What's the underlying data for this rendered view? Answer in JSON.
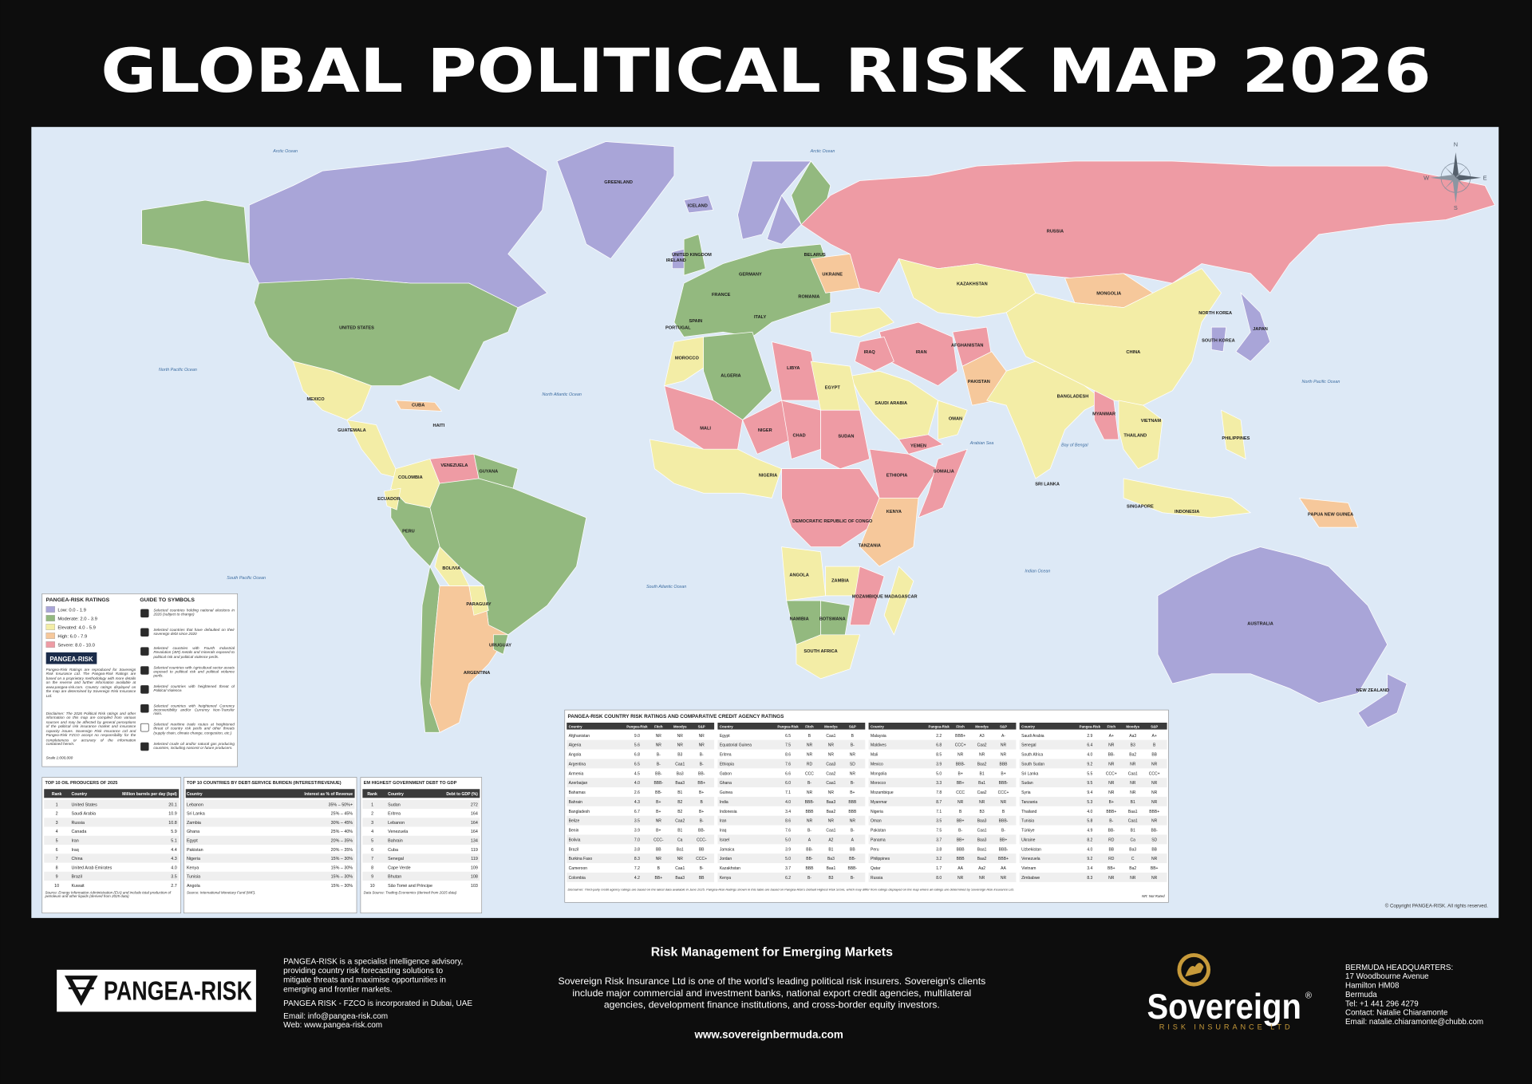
{
  "title": "GLOBAL POLITICAL RISK MAP 2026",
  "map": {
    "labels": [
      "UNITED STATES",
      "MEXICO",
      "GREENLAND",
      "ICELAND",
      "CUBA",
      "HAITI",
      "GUATEMALA",
      "COLOMBIA",
      "VENEZUELA",
      "GUYANA",
      "ECUADOR",
      "PERU",
      "BOLIVIA",
      "PARAGUAY",
      "URUGUAY",
      "ARGENTINA",
      "UNITED KINGDOM",
      "IRELAND",
      "SPAIN",
      "PORTUGAL",
      "FRANCE",
      "GERMANY",
      "ITALY",
      "UKRAINE",
      "BELARUS",
      "ROMANIA",
      "RUSSIA",
      "KAZAKHSTAN",
      "MONGOLIA",
      "CHINA",
      "JAPAN",
      "NORTH KOREA",
      "SOUTH KOREA",
      "AFGHANISTAN",
      "PAKISTAN",
      "IRAN",
      "IRAQ",
      "SAUDI ARABIA",
      "YEMEN",
      "OMAN",
      "EGYPT",
      "LIBYA",
      "ALGERIA",
      "MOROCCO",
      "MALI",
      "NIGER",
      "CHAD",
      "SUDAN",
      "ETHIOPIA",
      "SOMALIA",
      "NIGERIA",
      "DEMOCRATIC REPUBLIC OF CONGO",
      "KENYA",
      "TANZANIA",
      "ANGOLA",
      "ZAMBIA",
      "MOZAMBIQUE",
      "NAMIBIA",
      "BOTSWANA",
      "SOUTH AFRICA",
      "MADAGASCAR",
      "BANGLADESH",
      "MYANMAR",
      "THAILAND",
      "VIETNAM",
      "PHILIPPINES",
      "SRI LANKA",
      "SINGAPORE",
      "INDONESIA",
      "PAPUA NEW GUINEA",
      "AUSTRALIA",
      "NEW ZEALAND"
    ],
    "ocean_labels": [
      "Arctic Ocean",
      "Arctic Ocean",
      "North Pacific Ocean",
      "North Atlantic Ocean",
      "South Pacific Ocean",
      "South Atlantic Ocean",
      "Indian Ocean",
      "Bay of Bengal",
      "Arabian Sea",
      "North Pacific Ocean"
    ],
    "compass": [
      "N",
      "E",
      "S",
      "W"
    ],
    "copyright": "© Copyright PANGEA-RISK. All rights reserved."
  },
  "legend": {
    "title": "PANGEA-RISK RATINGS",
    "items": [
      {
        "label": "Low: 0.0 - 1.9",
        "color": "#a9a5d8"
      },
      {
        "label": "Moderate: 2.0 - 3.9",
        "color": "#93b97f"
      },
      {
        "label": "Elevated: 4.0 - 5.9",
        "color": "#f3eda6"
      },
      {
        "label": "High: 6.0 - 7.9",
        "color": "#f6c89b"
      },
      {
        "label": "Severe: 8.0 - 10.0",
        "color": "#ee9ba4"
      }
    ],
    "brand": "PANGEA-RISK",
    "note": "Pangea-Risk Ratings are reproduced for Sovereign Risk Insurance Ltd. The Pangea-Risk Ratings are based on a proprietary methodology with more details on the reverse and further information available at www.pangea-risk.com. Country ratings displayed on the map are determined by Sovereign Risk Insurance Ltd.",
    "disclaimer": "Disclaimer: The 2026 Political Risk ratings and other information on this map are compiled from various sources and may be affected by general perceptions of the political risk insurance market and insurance capacity issues. Sovereign Risk Insurance Ltd and Pangea-Risk FZCO accept no responsibility for the completeness or accuracy of the information contained herein.",
    "scale": "Scale 1:000,000"
  },
  "symbols": {
    "title": "GUIDE TO SYMBOLS",
    "items": [
      "Selected countries holding national elections in 2026 (subject to change)",
      "Selected countries that have defaulted on their sovereign debt since 2020",
      "Selected countries with Fourth Industrial Revolution (4IR) metals and minerals exposed to political risk and political violence perils.",
      "Selected countries with Agricultural sector assets exposed to political risk and political violence perils.",
      "Selected countries with heightened threat of Political Violence.",
      "Selected countries with heightened Currency Inconvertibility and/or Currency Non-Transfer risks.",
      "Selected maritime trade routes at heightened threat of country risk perils and other threats (supply chain, climate change, congestion, etc.)",
      "Selected crude oil and/or natural gas producing countries, including nascent or future producers."
    ]
  },
  "oil": {
    "title": "TOP 10 OIL PRODUCERS OF 2025",
    "columns": [
      "Rank",
      "Country",
      "Million barrels per day (bpd)"
    ],
    "rows": [
      [
        "1",
        "United States",
        "20.1"
      ],
      [
        "2",
        "Saudi Arabia",
        "10.9"
      ],
      [
        "3",
        "Russia",
        "10.8"
      ],
      [
        "4",
        "Canada",
        "5.9"
      ],
      [
        "5",
        "Iran",
        "5.1"
      ],
      [
        "6",
        "Iraq",
        "4.4"
      ],
      [
        "7",
        "China",
        "4.3"
      ],
      [
        "8",
        "United Arab Emirates",
        "4.0"
      ],
      [
        "9",
        "Brazil",
        "3.5"
      ],
      [
        "10",
        "Kuwait",
        "2.7"
      ]
    ],
    "source": "Source: Energy Information Administration (EIA) and include total production of petroleum and other liquids (derived from 2025 data)"
  },
  "debt_service": {
    "title": "TOP 10 COUNTRIES BY DEBT-SERVICE BURDEN (INTEREST/REVENUE)",
    "columns": [
      "Country",
      "Interest as % of Revenue"
    ],
    "rows": [
      [
        "Lebanon",
        "35% – 50%+"
      ],
      [
        "Sri Lanka",
        "25% – 45%"
      ],
      [
        "Zambia",
        "30% – 45%"
      ],
      [
        "Ghana",
        "25% – 40%"
      ],
      [
        "Egypt",
        "20% – 35%"
      ],
      [
        "Pakistan",
        "20% – 35%"
      ],
      [
        "Nigeria",
        "15% – 30%"
      ],
      [
        "Kenya",
        "15% – 30%"
      ],
      [
        "Tunisia",
        "15% – 30%"
      ],
      [
        "Angola",
        "15% – 30%"
      ]
    ],
    "source": "Source: International Monetary Fund (IMF)."
  },
  "em_debt": {
    "title": "EM HIGHEST GOVERNMENT DEBT TO GDP",
    "columns": [
      "Rank",
      "Country",
      "Debt to GDP (%)"
    ],
    "rows": [
      [
        "1",
        "Sudan",
        "272"
      ],
      [
        "2",
        "Eritrea",
        "164"
      ],
      [
        "3",
        "Lebanon",
        "164"
      ],
      [
        "4",
        "Venezuela",
        "164"
      ],
      [
        "5",
        "Bahrain",
        "134"
      ],
      [
        "6",
        "Cuba",
        "119"
      ],
      [
        "7",
        "Senegal",
        "119"
      ],
      [
        "8",
        "Cape Verde",
        "109"
      ],
      [
        "9",
        "Bhutan",
        "108"
      ],
      [
        "10",
        "São Tomé and Príncipe",
        "103"
      ]
    ],
    "source": "Data Source: Trading Economics (derived from 2025 data)"
  },
  "country_table": {
    "title": "PANGEA-RISK COUNTRY RISK RATINGS AND COMPARATIVE CREDIT AGENCY RATINGS",
    "columns": [
      "Country",
      "Pangea-Risk",
      "Fitch",
      "Moodys",
      "S&P"
    ],
    "blocks": [
      [
        [
          "Afghanistan",
          "9.0",
          "NR",
          "NR",
          "NR"
        ],
        [
          "Algeria",
          "5.6",
          "NR",
          "NR",
          "NR"
        ],
        [
          "Angola",
          "6.8",
          "B-",
          "B3",
          "B-"
        ],
        [
          "Argentina",
          "6.5",
          "B-",
          "Caa1",
          "B-"
        ],
        [
          "Armenia",
          "4.5",
          "BB-",
          "Ba3",
          "BB-"
        ],
        [
          "Azerbaijan",
          "4.0",
          "BBB-",
          "Baa3",
          "BB+"
        ],
        [
          "Bahamas",
          "2.6",
          "BB-",
          "B1",
          "B+"
        ],
        [
          "Bahrain",
          "4.3",
          "B+",
          "B2",
          "B"
        ],
        [
          "Bangladesh",
          "6.7",
          "B+",
          "B2",
          "B+"
        ],
        [
          "Belize",
          "3.5",
          "NR",
          "Caa2",
          "B-"
        ],
        [
          "Benin",
          "3.9",
          "B+",
          "B1",
          "BB-"
        ],
        [
          "Bolivia",
          "7.0",
          "CCC-",
          "Ca",
          "CCC-"
        ],
        [
          "Brazil",
          "3.8",
          "BB",
          "Ba1",
          "BB"
        ],
        [
          "Burkina Faso",
          "8.3",
          "NR",
          "NR",
          "CCC+"
        ],
        [
          "Cameroon",
          "7.2",
          "B",
          "Caa1",
          "B-"
        ],
        [
          "Colombia",
          "4.2",
          "BB+",
          "Baa3",
          "BB"
        ]
      ],
      [
        [
          "Egypt",
          "6.5",
          "B",
          "Caa1",
          "B"
        ],
        [
          "Equatorial Guinea",
          "7.5",
          "NR",
          "NR",
          "B-"
        ],
        [
          "Eritrea",
          "8.6",
          "NR",
          "NR",
          "NR"
        ],
        [
          "Ethiopia",
          "7.6",
          "RD",
          "Caa3",
          "SD"
        ],
        [
          "Gabon",
          "6.6",
          "CCC",
          "Caa2",
          "NR"
        ],
        [
          "Ghana",
          "6.0",
          "B-",
          "Caa1",
          "B-"
        ],
        [
          "Guinea",
          "7.1",
          "NR",
          "NR",
          "B+"
        ],
        [
          "India",
          "4.0",
          "BBB-",
          "Baa3",
          "BBB"
        ],
        [
          "Indonesia",
          "3.4",
          "BBB",
          "Baa2",
          "BBB"
        ],
        [
          "Iran",
          "8.6",
          "NR",
          "NR",
          "NR"
        ],
        [
          "Iraq",
          "7.6",
          "B-",
          "Caa1",
          "B-"
        ],
        [
          "Israel",
          "5.0",
          "A",
          "A2",
          "A"
        ],
        [
          "Jamaica",
          "3.9",
          "BB-",
          "B1",
          "BB"
        ],
        [
          "Jordan",
          "5.0",
          "BB-",
          "Ba3",
          "BB-"
        ],
        [
          "Kazakhstan",
          "3.7",
          "BBB",
          "Baa1",
          "BBB-"
        ],
        [
          "Kenya",
          "6.2",
          "B-",
          "B3",
          "B-"
        ]
      ],
      [
        [
          "Malaysia",
          "2.2",
          "BBB+",
          "A3",
          "A-"
        ],
        [
          "Maldives",
          "6.8",
          "CCC+",
          "Caa2",
          "NR"
        ],
        [
          "Mali",
          "8.5",
          "NR",
          "NR",
          "NR"
        ],
        [
          "Mexico",
          "3.9",
          "BBB-",
          "Baa2",
          "BBB"
        ],
        [
          "Mongolia",
          "5.0",
          "B+",
          "B1",
          "B+"
        ],
        [
          "Morocco",
          "3.3",
          "BB+",
          "Ba1",
          "BBB-"
        ],
        [
          "Mozambique",
          "7.8",
          "CCC",
          "Caa2",
          "CCC+"
        ],
        [
          "Myanmar",
          "8.7",
          "NR",
          "NR",
          "NR"
        ],
        [
          "Nigeria",
          "7.1",
          "B",
          "B3",
          "B"
        ],
        [
          "Oman",
          "3.5",
          "BB+",
          "Baa3",
          "BBB-"
        ],
        [
          "Pakistan",
          "7.5",
          "B-",
          "Caa1",
          "B-"
        ],
        [
          "Panama",
          "3.7",
          "BB+",
          "Baa3",
          "BB+"
        ],
        [
          "Peru",
          "3.8",
          "BBB",
          "Baa1",
          "BBB-"
        ],
        [
          "Philippines",
          "3.2",
          "BBB",
          "Baa2",
          "BBB+"
        ],
        [
          "Qatar",
          "1.7",
          "AA",
          "Aa2",
          "AA"
        ],
        [
          "Russia",
          "8.0",
          "NR",
          "NR",
          "NR"
        ]
      ],
      [
        [
          "Saudi Arabia",
          "2.9",
          "A+",
          "Aa3",
          "A+"
        ],
        [
          "Senegal",
          "6.4",
          "NR",
          "B3",
          "B"
        ],
        [
          "South Africa",
          "4.0",
          "BB-",
          "Ba2",
          "BB"
        ],
        [
          "South Sudan",
          "9.2",
          "NR",
          "NR",
          "NR"
        ],
        [
          "Sri Lanka",
          "5.5",
          "CCC+",
          "Caa1",
          "CCC+"
        ],
        [
          "Sudan",
          "9.5",
          "NR",
          "NR",
          "NR"
        ],
        [
          "Syria",
          "9.4",
          "NR",
          "NR",
          "NR"
        ],
        [
          "Tanzania",
          "5.3",
          "B+",
          "B1",
          "NR"
        ],
        [
          "Thailand",
          "4.0",
          "BBB+",
          "Baa1",
          "BBB+"
        ],
        [
          "Tunisia",
          "5.8",
          "B-",
          "Caa1",
          "NR"
        ],
        [
          "Türkiye",
          "4.9",
          "BB-",
          "B1",
          "BB-"
        ],
        [
          "Ukraine",
          "8.2",
          "RD",
          "Ca",
          "SD"
        ],
        [
          "Uzbekistan",
          "4.0",
          "BB",
          "Ba3",
          "BB"
        ],
        [
          "Venezuela",
          "9.2",
          "RD",
          "C",
          "NR"
        ],
        [
          "Vietnam",
          "3.4",
          "BB+",
          "Ba2",
          "BB+"
        ],
        [
          "Zimbabwe",
          "8.3",
          "NR",
          "NR",
          "NR"
        ]
      ]
    ],
    "footnote": "Disclaimer: Third-party credit agency ratings are based on the latest data available in June 2025. Pangea-Risk Ratings shown in this table are based on Pangea-Risk's Default Highest Risk Score, which may differ from ratings displayed on the map where all ratings are determined by Sovereign Risk Insurance Ltd.",
    "nr_note": "NR: Not Rated"
  },
  "footer": {
    "pangea_logo": "PANGEA-RISK",
    "pangea_about": [
      "PANGEA-RISK is a specialist intelligence advisory,",
      "providing country risk forecasting solutions to",
      "mitigate threats and maximise opportunities in",
      "emerging and frontier markets."
    ],
    "pangea_incorporation": "PANGEA RISK - FZCO is incorporated in Dubai, UAE",
    "pangea_email": "Email: info@pangea-risk.com",
    "pangea_web": "Web: www.pangea-risk.com",
    "heading": "Risk Management for Emerging Markets",
    "sovereign_about": [
      "Sovereign Risk Insurance Ltd is one of the world's leading political risk insurers. Sovereign's clients",
      "include major commercial and investment banks, national export credit agencies, multilateral",
      "agencies, development finance institutions, and cross-border equity investors."
    ],
    "sovereign_web": "www.sovereignbermuda.com",
    "sovereign_logo": "Sovereign",
    "sovereign_registered": "®",
    "sovereign_tagline": "RISK INSURANCE LTD",
    "hq": [
      "BERMUDA HEADQUARTERS:",
      "17 Woodbourne Avenue",
      "Hamilton HM08",
      "Bermuda",
      "Tel: +1 441 296 4279",
      "Contact: Natalie Chiaramonte",
      "Email: natalie.chiaramonte@chubb.com"
    ]
  }
}
